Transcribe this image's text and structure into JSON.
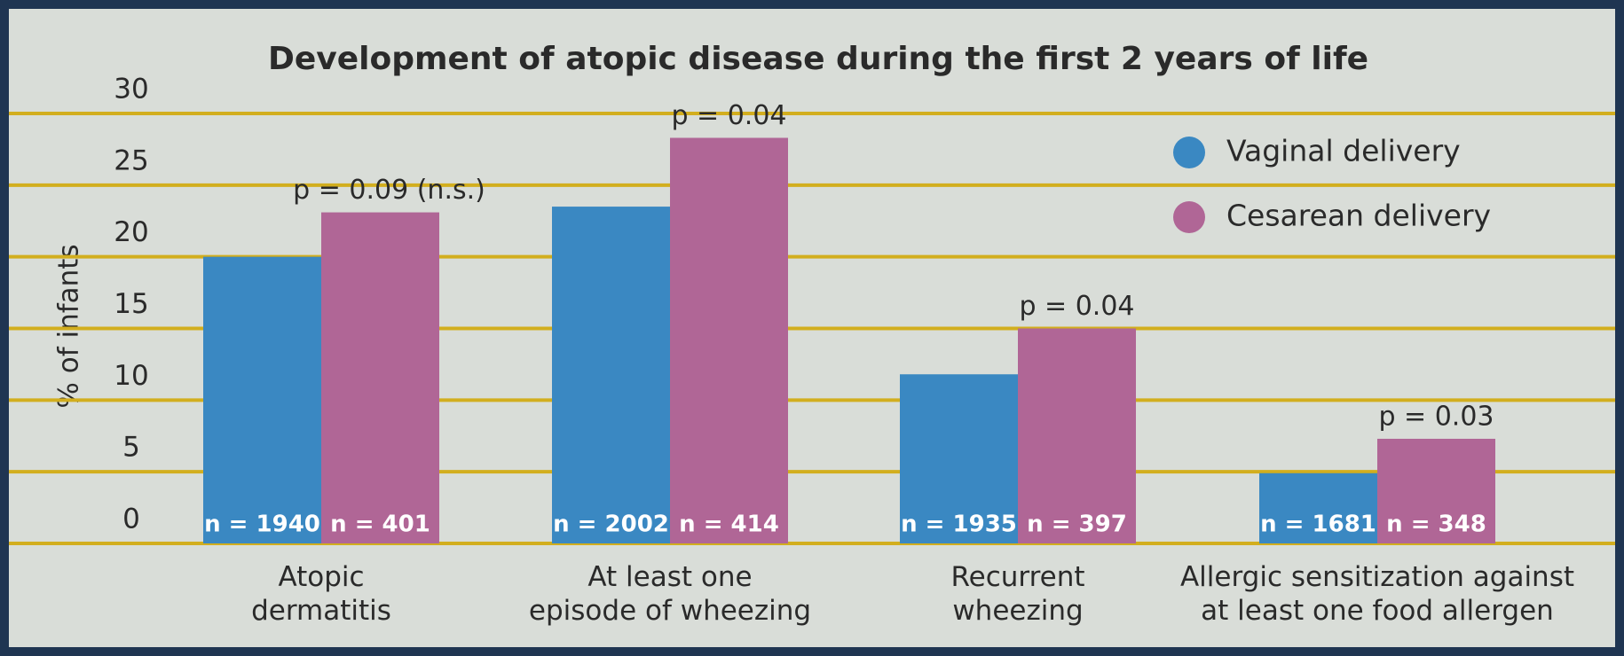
{
  "chart_data": {
    "type": "bar",
    "title": "Development of atopic disease during the first 2 years of life",
    "y_label": "% of infants",
    "categories": [
      "Atopic\ndermatitis",
      "At least one\nepisode of wheezing",
      "Recurrent\nwheezing",
      "Allergic sensitization against\nat least one food allergen"
    ],
    "series": [
      {
        "name": "Vaginal delivery",
        "color": "#3a88c2",
        "values": [
          20,
          23.5,
          11.8,
          4.9
        ],
        "sample_sizes": [
          "n = 1940",
          "n = 2002",
          "n = 1935",
          "n = 1681"
        ]
      },
      {
        "name": "Cesarean delivery",
        "color": "#b06696",
        "values": [
          23.1,
          28.3,
          15,
          7.3
        ],
        "sample_sizes": [
          "n = 401",
          "n = 414",
          "n = 397",
          "n = 348"
        ]
      }
    ],
    "annotations": [
      "p = 0.09 (n.s.)",
      "p = 0.04",
      "p = 0.04",
      "p = 0.03"
    ],
    "ylim": [
      0,
      30
    ],
    "yticks": [
      0,
      5,
      10,
      15,
      20,
      25,
      30
    ],
    "grid": true,
    "legend": "top-right"
  }
}
